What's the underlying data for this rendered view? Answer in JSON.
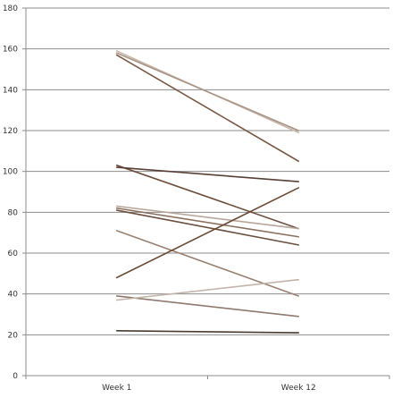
{
  "chart_data": {
    "type": "line",
    "title": "",
    "xlabel": "",
    "ylabel": "",
    "categories": [
      "Week 1",
      "Week 12"
    ],
    "ylim": [
      0,
      180
    ],
    "yticks": [
      0,
      20,
      40,
      60,
      80,
      100,
      120,
      140,
      160,
      180
    ],
    "grid": true,
    "legend": "none",
    "series": [
      {
        "values": [
          159,
          119
        ],
        "color": "#c8b8ac"
      },
      {
        "values": [
          158,
          120
        ],
        "color": "#a99585"
      },
      {
        "values": [
          157,
          105
        ],
        "color": "#7a5a46"
      },
      {
        "values": [
          103,
          72
        ],
        "color": "#6e4f3c"
      },
      {
        "values": [
          102,
          95
        ],
        "color": "#5a4034"
      },
      {
        "values": [
          83,
          72
        ],
        "color": "#b8a69a"
      },
      {
        "values": [
          82,
          68
        ],
        "color": "#8a6f5e"
      },
      {
        "values": [
          81,
          64
        ],
        "color": "#6b5040"
      },
      {
        "values": [
          71,
          39
        ],
        "color": "#9a8272"
      },
      {
        "values": [
          48,
          92
        ],
        "color": "#6d4c38"
      },
      {
        "values": [
          39,
          29
        ],
        "color": "#8f7a6d"
      },
      {
        "values": [
          37,
          47
        ],
        "color": "#c4b4a8"
      },
      {
        "values": [
          22,
          21
        ],
        "color": "#4a3b30"
      }
    ]
  }
}
